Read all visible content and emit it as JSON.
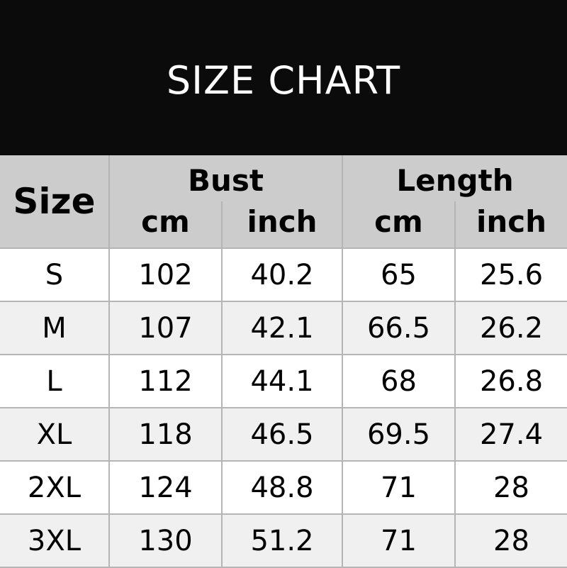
{
  "title": "SIZE CHART",
  "table": {
    "size_header": "Size",
    "groups": [
      "Bust",
      "Length"
    ],
    "units": [
      "cm",
      "inch",
      "cm",
      "inch"
    ],
    "rows": [
      [
        "S",
        "102",
        "40.2",
        "65",
        "25.6"
      ],
      [
        "M",
        "107",
        "42.1",
        "66.5",
        "26.2"
      ],
      [
        "L",
        "112",
        "44.1",
        "68",
        "26.8"
      ],
      [
        "XL",
        "118",
        "46.5",
        "69.5",
        "27.4"
      ],
      [
        "2XL",
        "124",
        "48.8",
        "71",
        "28"
      ],
      [
        "3XL",
        "130",
        "51.2",
        "71",
        "28"
      ]
    ]
  }
}
